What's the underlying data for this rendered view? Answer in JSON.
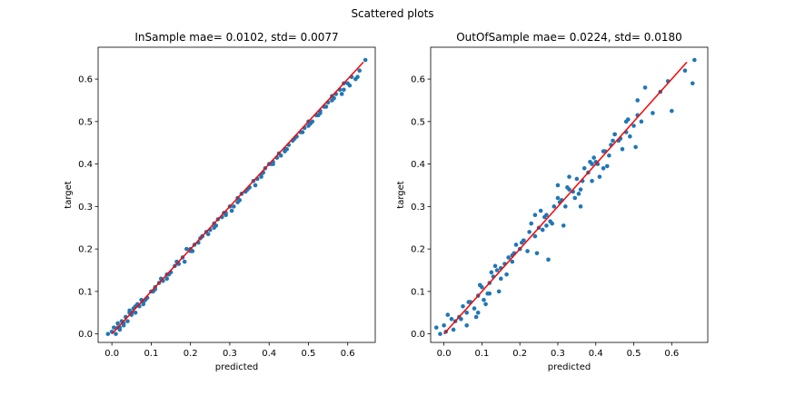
{
  "figure": {
    "suptitle": "Scattered plots"
  },
  "chart_data": [
    {
      "type": "scatter",
      "title": "InSample mae=  0.0102, std=  0.0077",
      "xlabel": "predicted",
      "ylabel": "target",
      "xlim": [
        -0.035,
        0.67
      ],
      "ylim": [
        -0.02,
        0.675
      ],
      "xticks": [
        0.0,
        0.1,
        0.2,
        0.3,
        0.4,
        0.5,
        0.6
      ],
      "yticks": [
        0.0,
        0.1,
        0.2,
        0.3,
        0.4,
        0.5,
        0.6
      ],
      "scatter_color": "#1f77b4",
      "line_color": "#ff0000",
      "fit_line": {
        "x": [
          0.0,
          0.64
        ],
        "y": [
          0.0,
          0.64
        ]
      },
      "points": {
        "x": [
          -0.01,
          0.0,
          0.005,
          0.01,
          0.015,
          0.02,
          0.025,
          0.03,
          0.035,
          0.04,
          0.045,
          0.05,
          0.055,
          0.06,
          0.065,
          0.07,
          0.075,
          0.08,
          0.09,
          0.1,
          0.11,
          0.12,
          0.13,
          0.14,
          0.15,
          0.16,
          0.17,
          0.18,
          0.19,
          0.2,
          0.21,
          0.22,
          0.23,
          0.24,
          0.25,
          0.26,
          0.27,
          0.28,
          0.29,
          0.3,
          0.31,
          0.32,
          0.33,
          0.34,
          0.35,
          0.36,
          0.37,
          0.38,
          0.39,
          0.4,
          0.41,
          0.42,
          0.43,
          0.44,
          0.45,
          0.46,
          0.47,
          0.48,
          0.49,
          0.5,
          0.51,
          0.52,
          0.53,
          0.54,
          0.55,
          0.56,
          0.57,
          0.58,
          0.59,
          0.6,
          0.61,
          0.62,
          0.63,
          0.645,
          0.015,
          0.03,
          0.045,
          0.06,
          0.085,
          0.105,
          0.125,
          0.145,
          0.165,
          0.185,
          0.205,
          0.225,
          0.245,
          0.265,
          0.285,
          0.305,
          0.325,
          0.345,
          0.365,
          0.385,
          0.405,
          0.425,
          0.445,
          0.465,
          0.485,
          0.505,
          0.525,
          0.545,
          0.565,
          0.585,
          0.605,
          0.625,
          0.02,
          0.05,
          0.08,
          0.11,
          0.14,
          0.17,
          0.2,
          0.23,
          0.26,
          0.29,
          0.32,
          0.35,
          0.38,
          0.41,
          0.44,
          0.47,
          0.5,
          0.53,
          0.56,
          0.59
        ],
        "y": [
          0.0,
          0.005,
          0.015,
          0.0,
          0.025,
          0.01,
          0.03,
          0.02,
          0.04,
          0.03,
          0.05,
          0.045,
          0.06,
          0.05,
          0.07,
          0.065,
          0.08,
          0.075,
          0.085,
          0.1,
          0.11,
          0.12,
          0.125,
          0.14,
          0.145,
          0.16,
          0.165,
          0.18,
          0.2,
          0.195,
          0.21,
          0.215,
          0.23,
          0.24,
          0.245,
          0.26,
          0.27,
          0.275,
          0.285,
          0.3,
          0.3,
          0.32,
          0.33,
          0.335,
          0.345,
          0.36,
          0.365,
          0.375,
          0.39,
          0.4,
          0.4,
          0.415,
          0.42,
          0.435,
          0.445,
          0.455,
          0.465,
          0.475,
          0.485,
          0.5,
          0.5,
          0.515,
          0.525,
          0.535,
          0.545,
          0.56,
          0.565,
          0.575,
          0.59,
          0.59,
          0.605,
          0.6,
          0.62,
          0.645,
          0.015,
          0.025,
          0.055,
          0.065,
          0.08,
          0.1,
          0.13,
          0.14,
          0.17,
          0.17,
          0.195,
          0.225,
          0.235,
          0.255,
          0.285,
          0.29,
          0.315,
          0.34,
          0.35,
          0.38,
          0.4,
          0.425,
          0.435,
          0.46,
          0.475,
          0.495,
          0.515,
          0.535,
          0.555,
          0.565,
          0.585,
          0.605,
          0.015,
          0.05,
          0.07,
          0.105,
          0.13,
          0.165,
          0.2,
          0.23,
          0.25,
          0.28,
          0.31,
          0.345,
          0.37,
          0.405,
          0.43,
          0.465,
          0.49,
          0.52,
          0.55,
          0.575
        ]
      }
    },
    {
      "type": "scatter",
      "title": "OutOfSample mae=  0.0224, std=  0.0180",
      "xlabel": "predicted",
      "ylabel": "target",
      "xlim": [
        -0.035,
        0.695
      ],
      "ylim": [
        -0.02,
        0.675
      ],
      "xticks": [
        0.0,
        0.1,
        0.2,
        0.3,
        0.4,
        0.5,
        0.6
      ],
      "yticks": [
        0.0,
        0.1,
        0.2,
        0.3,
        0.4,
        0.5,
        0.6
      ],
      "scatter_color": "#1f77b4",
      "line_color": "#ff0000",
      "fit_line": {
        "x": [
          0.0,
          0.64
        ],
        "y": [
          0.0,
          0.64
        ]
      },
      "points": {
        "x": [
          -0.02,
          -0.01,
          0.0,
          0.01,
          0.02,
          0.03,
          0.04,
          0.05,
          0.06,
          0.07,
          0.08,
          0.09,
          0.1,
          0.11,
          0.12,
          0.13,
          0.14,
          0.15,
          0.16,
          0.17,
          0.18,
          0.19,
          0.2,
          0.21,
          0.22,
          0.23,
          0.24,
          0.25,
          0.26,
          0.27,
          0.28,
          0.29,
          0.3,
          0.31,
          0.32,
          0.33,
          0.34,
          0.35,
          0.36,
          0.37,
          0.38,
          0.39,
          0.4,
          0.41,
          0.42,
          0.43,
          0.44,
          0.45,
          0.46,
          0.47,
          0.48,
          0.49,
          0.5,
          0.51,
          0.52,
          0.53,
          0.55,
          0.57,
          0.59,
          0.6,
          0.635,
          0.655,
          0.66,
          0.005,
          0.025,
          0.045,
          0.065,
          0.085,
          0.095,
          0.105,
          0.125,
          0.145,
          0.165,
          0.185,
          0.205,
          0.225,
          0.245,
          0.265,
          0.285,
          0.305,
          0.325,
          0.345,
          0.365,
          0.385,
          0.405,
          0.425,
          0.445,
          0.465,
          0.485,
          0.505,
          0.06,
          0.09,
          0.12,
          0.15,
          0.18,
          0.21,
          0.24,
          0.27,
          0.3,
          0.33,
          0.36,
          0.39,
          0.42,
          0.45,
          0.48,
          0.51,
          0.095,
          0.115,
          0.135,
          0.255,
          0.275,
          0.315,
          0.355,
          0.395,
          0.435
        ],
        "y": [
          0.015,
          0.0,
          0.02,
          0.045,
          0.035,
          0.03,
          0.04,
          0.065,
          0.05,
          0.075,
          0.06,
          0.09,
          0.11,
          0.07,
          0.095,
          0.135,
          0.15,
          0.13,
          0.165,
          0.18,
          0.17,
          0.21,
          0.2,
          0.22,
          0.195,
          0.26,
          0.23,
          0.25,
          0.245,
          0.28,
          0.265,
          0.3,
          0.32,
          0.315,
          0.3,
          0.34,
          0.335,
          0.365,
          0.34,
          0.39,
          0.38,
          0.36,
          0.405,
          0.37,
          0.43,
          0.395,
          0.445,
          0.47,
          0.455,
          0.435,
          0.475,
          0.465,
          0.49,
          0.515,
          0.5,
          0.58,
          0.52,
          0.57,
          0.595,
          0.525,
          0.62,
          0.59,
          0.645,
          0.005,
          0.01,
          0.035,
          0.075,
          0.04,
          0.115,
          0.08,
          0.145,
          0.1,
          0.14,
          0.19,
          0.215,
          0.24,
          0.19,
          0.275,
          0.26,
          0.31,
          0.345,
          0.32,
          0.36,
          0.405,
          0.4,
          0.43,
          0.455,
          0.46,
          0.505,
          0.44,
          0.02,
          0.05,
          0.12,
          0.155,
          0.185,
          0.22,
          0.28,
          0.255,
          0.35,
          0.37,
          0.3,
          0.4,
          0.39,
          0.47,
          0.5,
          0.55,
          0.115,
          0.095,
          0.16,
          0.29,
          0.175,
          0.255,
          0.33,
          0.415,
          0.42
        ]
      }
    }
  ]
}
